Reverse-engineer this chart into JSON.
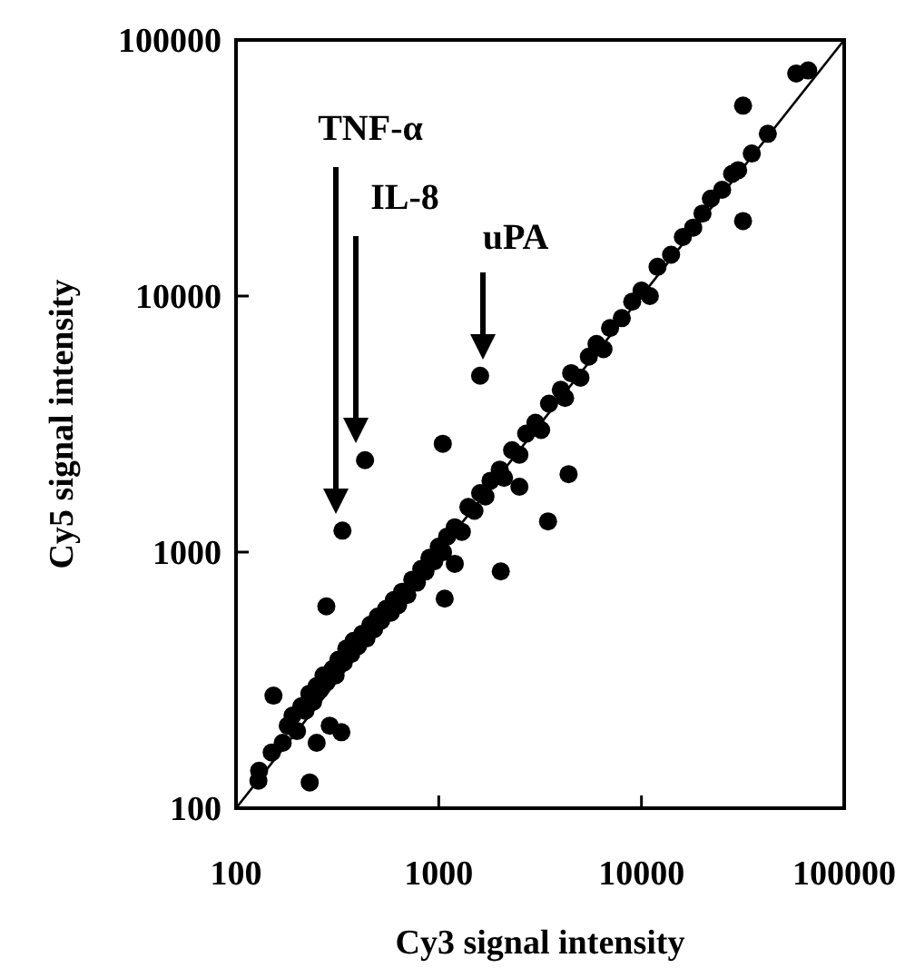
{
  "chart_data": {
    "type": "scatter",
    "xlabel": "Cy3 signal intensity",
    "ylabel": "Cy5 signal intensity",
    "log": "xy",
    "xlim": [
      100,
      100000
    ],
    "ylim": [
      100,
      100000
    ],
    "xticks": [
      100,
      1000,
      10000,
      100000
    ],
    "yticks": [
      100,
      1000,
      10000,
      100000
    ],
    "grid": false,
    "marker": "circle",
    "series": [
      {
        "color": "#000000",
        "x": [
          130,
          150,
          170,
          180,
          190,
          200,
          210,
          220,
          230,
          240,
          250,
          260,
          270,
          280,
          300,
          310,
          320,
          340,
          350,
          370,
          380,
          400,
          420,
          440,
          460,
          480,
          500,
          520,
          550,
          580,
          600,
          630,
          660,
          700,
          740,
          780,
          820,
          860,
          900,
          950,
          1000,
          1050,
          1100,
          1200,
          1300,
          1400,
          1500,
          1600,
          1700,
          1800,
          2000,
          2100,
          2300,
          2500,
          2700,
          3000,
          3200,
          3500,
          4000,
          4200,
          4500,
          5000,
          5500,
          6000,
          6500,
          7000,
          8000,
          9000,
          10000,
          11000,
          12000,
          14000,
          16000,
          18000,
          20000,
          22000,
          25000,
          28000,
          30000,
          35000,
          42000,
          250,
          290,
          1200,
          2500,
          335,
          433,
          1600,
          1047,
          31700,
          31700,
          58000,
          66400,
          279,
          153,
          129,
          231,
          2023,
          3460,
          4370,
          1070,
          331
        ],
        "values": [
          140,
          165,
          180,
          210,
          230,
          200,
          250,
          240,
          280,
          260,
          300,
          290,
          330,
          310,
          350,
          330,
          380,
          370,
          420,
          400,
          450,
          430,
          480,
          460,
          520,
          500,
          560,
          540,
          600,
          580,
          650,
          620,
          700,
          680,
          780,
          760,
          860,
          840,
          950,
          920,
          1050,
          1000,
          1150,
          1250,
          1200,
          1500,
          1450,
          1700,
          1650,
          1900,
          2100,
          1950,
          2500,
          2400,
          2900,
          3200,
          3000,
          3800,
          4300,
          4000,
          5000,
          4800,
          5800,
          6500,
          6200,
          7500,
          8200,
          9500,
          10500,
          10000,
          13000,
          14500,
          17000,
          18500,
          21000,
          24000,
          26000,
          30000,
          31000,
          36000,
          43000,
          180,
          210,
          900,
          1800,
          1213,
          2285,
          4885,
          2650,
          55400,
          19630,
          74000,
          76000,
          614,
          275,
          128,
          126,
          841,
          1318,
          2015,
          658,
          198
        ]
      },
      {
        "type": "line",
        "color": "#000000",
        "marker": "none",
        "x": [
          100,
          100000
        ],
        "values": [
          100,
          100000
        ]
      }
    ],
    "annotations": [
      "TNF-α",
      "IL-8",
      "uPA"
    ]
  }
}
